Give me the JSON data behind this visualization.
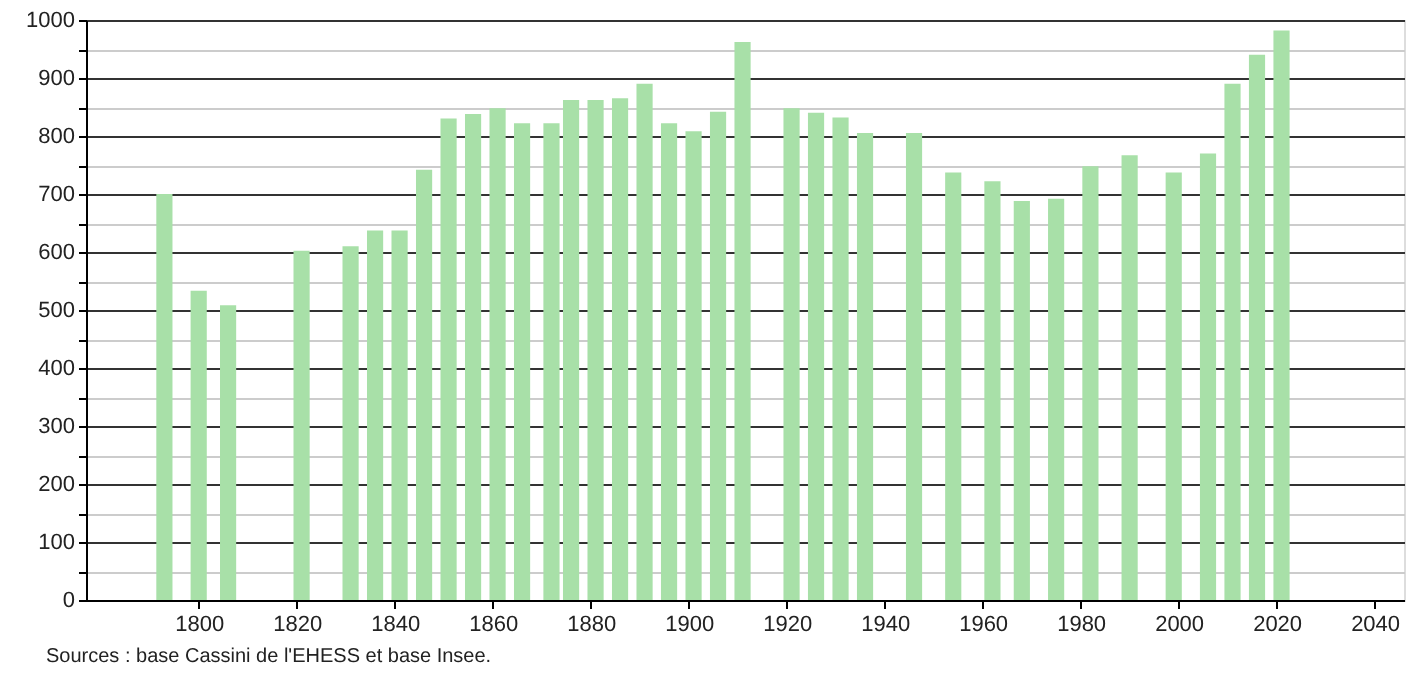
{
  "chart_data": {
    "type": "bar",
    "color": "#a8e0a8",
    "x": [
      1793,
      1800,
      1806,
      1821,
      1831,
      1836,
      1841,
      1846,
      1851,
      1856,
      1861,
      1866,
      1872,
      1876,
      1881,
      1886,
      1891,
      1896,
      1901,
      1906,
      1911,
      1921,
      1926,
      1931,
      1936,
      1946,
      1954,
      1962,
      1968,
      1975,
      1982,
      1990,
      1999,
      2006,
      2011,
      2016,
      2021
    ],
    "values": [
      700,
      533,
      508,
      602,
      610,
      637,
      637,
      742,
      830,
      838,
      848,
      822,
      822,
      862,
      862,
      865,
      890,
      822,
      808,
      842,
      962,
      848,
      840,
      832,
      805,
      805,
      737,
      722,
      688,
      692,
      748,
      767,
      737,
      770,
      890,
      940,
      982
    ],
    "xlim": [
      1777,
      2046
    ],
    "xticks": [
      1800,
      1820,
      1840,
      1860,
      1880,
      1900,
      1920,
      1940,
      1960,
      1980,
      2000,
      2020,
      2040
    ],
    "ylim": [
      0,
      1000
    ],
    "yticks": [
      0,
      {
        "value": 50,
        "label": null
      },
      100,
      {
        "value": 150,
        "label": null
      },
      200,
      {
        "value": 250,
        "label": null
      },
      300,
      {
        "value": 350,
        "label": null
      },
      400,
      {
        "value": 450,
        "label": null
      },
      500,
      {
        "value": 550,
        "label": null
      },
      600,
      {
        "value": 650,
        "label": null
      },
      700,
      {
        "value": 750,
        "label": null
      },
      800,
      {
        "value": 850,
        "label": null
      },
      900,
      {
        "value": 950,
        "label": null
      },
      1000
    ],
    "grid": "y",
    "annotations": [
      "Sources : base Cassini de l'EHESS et base Insee."
    ]
  }
}
